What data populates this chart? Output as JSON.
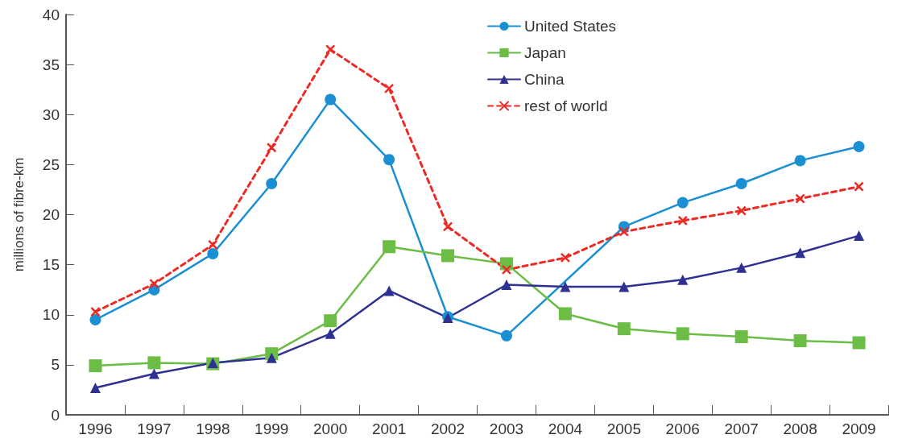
{
  "chart_data": {
    "type": "line",
    "ylabel": "millions of fibre-km",
    "categories": [
      "1996",
      "1997",
      "1998",
      "1999",
      "2000",
      "2001",
      "2002",
      "2003",
      "2004",
      "2005",
      "2006",
      "2007",
      "2008",
      "2009"
    ],
    "series": [
      {
        "name": "United States",
        "color": "#1b8fd4",
        "marker": "circle",
        "line_style": "solid",
        "values": [
          9.5,
          12.5,
          16.1,
          23.1,
          31.5,
          25.5,
          9.8,
          7.9,
          null,
          18.8,
          21.2,
          23.1,
          25.4,
          26.8
        ]
      },
      {
        "name": "Japan",
        "color": "#6bbd45",
        "marker": "square",
        "line_style": "solid",
        "values": [
          4.9,
          5.2,
          5.1,
          6.1,
          9.4,
          16.8,
          15.9,
          15.1,
          10.1,
          8.6,
          8.1,
          7.8,
          7.4,
          7.2
        ]
      },
      {
        "name": "China",
        "color": "#2e3192",
        "marker": "triangle",
        "line_style": "solid",
        "values": [
          2.7,
          4.1,
          5.2,
          5.7,
          8.1,
          12.4,
          9.7,
          13.0,
          12.8,
          12.8,
          13.5,
          14.7,
          16.2,
          17.9
        ]
      },
      {
        "name": "rest of world",
        "color": "#ee2a24",
        "marker": "cross",
        "line_style": "dashed",
        "values": [
          10.3,
          13.1,
          17.0,
          26.7,
          36.5,
          32.6,
          18.8,
          14.5,
          15.7,
          18.3,
          19.4,
          20.4,
          21.6,
          22.8
        ]
      }
    ],
    "ylim": [
      0,
      40
    ],
    "yticks": [
      0,
      5,
      10,
      15,
      20,
      25,
      30,
      35,
      40
    ],
    "grid": false,
    "legend": "top"
  }
}
